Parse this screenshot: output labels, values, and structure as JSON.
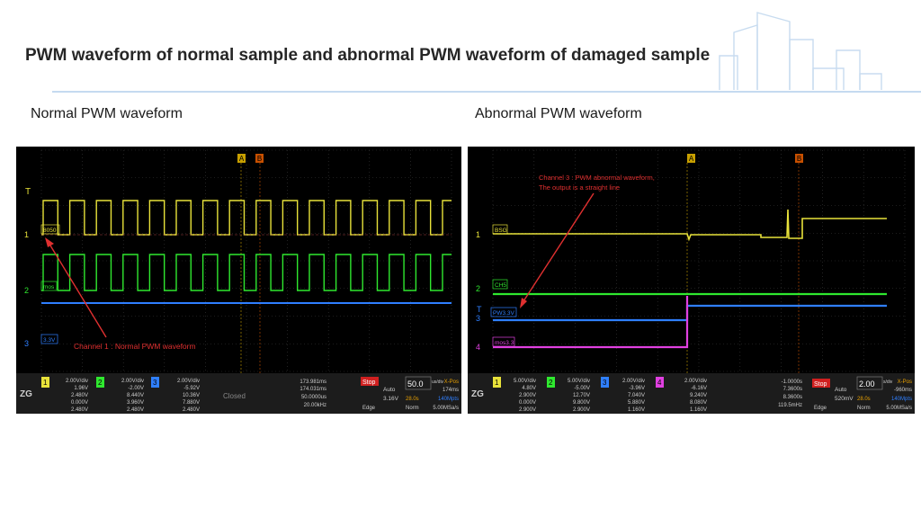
{
  "title": "PWM waveform of normal sample and abnormal PWM waveform of damaged sample",
  "panels": {
    "left": {
      "subtitle": "Normal PWM waveform",
      "marker_a": "A",
      "marker_b": "B",
      "trig_marker": "T",
      "ch_markers": [
        "1",
        "2",
        "3"
      ],
      "trace_tags": [
        "8050",
        "mos",
        "3.3V"
      ],
      "annotation": "Channel 1 : Normal PWM waveform",
      "bottom": {
        "logo": "ZG",
        "ch1": {
          "num": "1",
          "vdiv": "2.00V/div",
          "pos": "1.96V",
          "k2": "2.480V",
          "k3": "0.000V",
          "k4": "2.480V"
        },
        "ch2": {
          "num": "2",
          "vdiv": "2.00V/div",
          "pos": "-2.00V",
          "k2": "8.440V",
          "k3": "3.960V",
          "k4": "2.480V"
        },
        "ch3": {
          "num": "3",
          "vdiv": "2.00V/div",
          "pos": "-5.92V",
          "k2": "10.36V",
          "k3": "7.880V",
          "k4": "2.480V"
        },
        "closed": "Closed",
        "meas": [
          "173.981ms",
          "174.031ms",
          "50.0000us",
          "20.00kHz"
        ],
        "stop": "Stop",
        "mode": "Auto",
        "trig_level": "3.16V",
        "edge": "Edge",
        "timebase": "50.0",
        "tb_unit": "us/div",
        "xpos_label": "X-Pos",
        "xpos": "174ms",
        "mem": "28.0s",
        "pts": "140Mpts",
        "norm": "Norm",
        "rate": "5.00MSa/s"
      }
    },
    "right": {
      "subtitle": "Abnormal PWM waveform",
      "marker_a": "A",
      "marker_b": "B",
      "trig_marker": "T",
      "ch_markers": [
        "1",
        "2",
        "3",
        "4"
      ],
      "trace_tags": [
        "BSG",
        "CH5",
        "PW3.3V",
        "mos3.3"
      ],
      "annotation_line1": "Channel 3 : PWM abnormal waveform,",
      "annotation_line2": "The output is a straight line",
      "bottom": {
        "logo": "ZG",
        "ch1": {
          "num": "1",
          "vdiv": "5.00V/div",
          "pos": "4.80V",
          "k2": "2.900V",
          "k3": "0.000V",
          "k4": "2.900V"
        },
        "ch2": {
          "num": "2",
          "vdiv": "5.00V/div",
          "pos": "-5.00V",
          "k2": "12.70V",
          "k3": "9.800V",
          "k4": "2.900V"
        },
        "ch3": {
          "num": "3",
          "vdiv": "2.00V/div",
          "pos": "-3.96V",
          "k2": "7.040V",
          "k3": "5.880V",
          "k4": "1.160V"
        },
        "ch4": {
          "num": "4",
          "vdiv": "2.00V/div",
          "pos": "-6.16V",
          "k2": "9.240V",
          "k3": "8.080V",
          "k4": "1.160V"
        },
        "meas": [
          "-1.0000s",
          "7.3600s",
          "8.3600s",
          "119.5mHz"
        ],
        "stop": "Stop",
        "mode": "Auto",
        "trig_level": "520mV",
        "edge": "Edge",
        "timebase": "2.00",
        "tb_unit": "s/div",
        "xpos_label": "X-Pos",
        "xpos": "-960ms",
        "mem": "28.0s",
        "pts": "140Mpts",
        "norm": "Norm",
        "rate": "5.00MSa/s"
      }
    }
  },
  "colors": {
    "ch1": "#e8e23a",
    "ch2": "#2fe82f",
    "ch3": "#2f7fff",
    "ch4": "#e040e0",
    "annotation": "#e03030",
    "grid": "#3a3a3a"
  }
}
